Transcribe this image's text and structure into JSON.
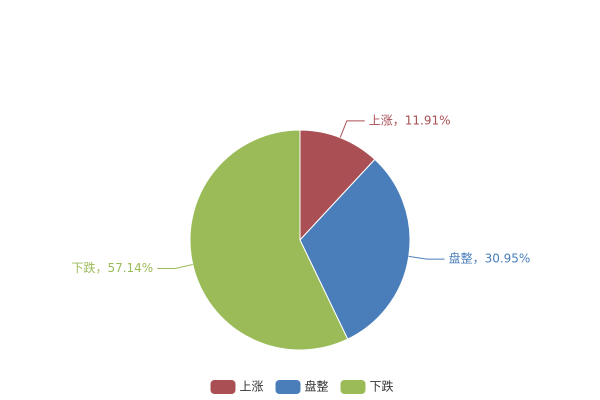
{
  "chart_data": {
    "type": "pie",
    "categories": [
      "上涨",
      "盘整",
      "下跌"
    ],
    "values": [
      11.91,
      30.95,
      57.14
    ],
    "value_labels": [
      "上涨，11.91%",
      "盘整，30.95%",
      "下跌，57.14%"
    ],
    "colors": [
      "#aa5055",
      "#4a7ebb",
      "#9bbb59"
    ],
    "legend": "bottom"
  }
}
